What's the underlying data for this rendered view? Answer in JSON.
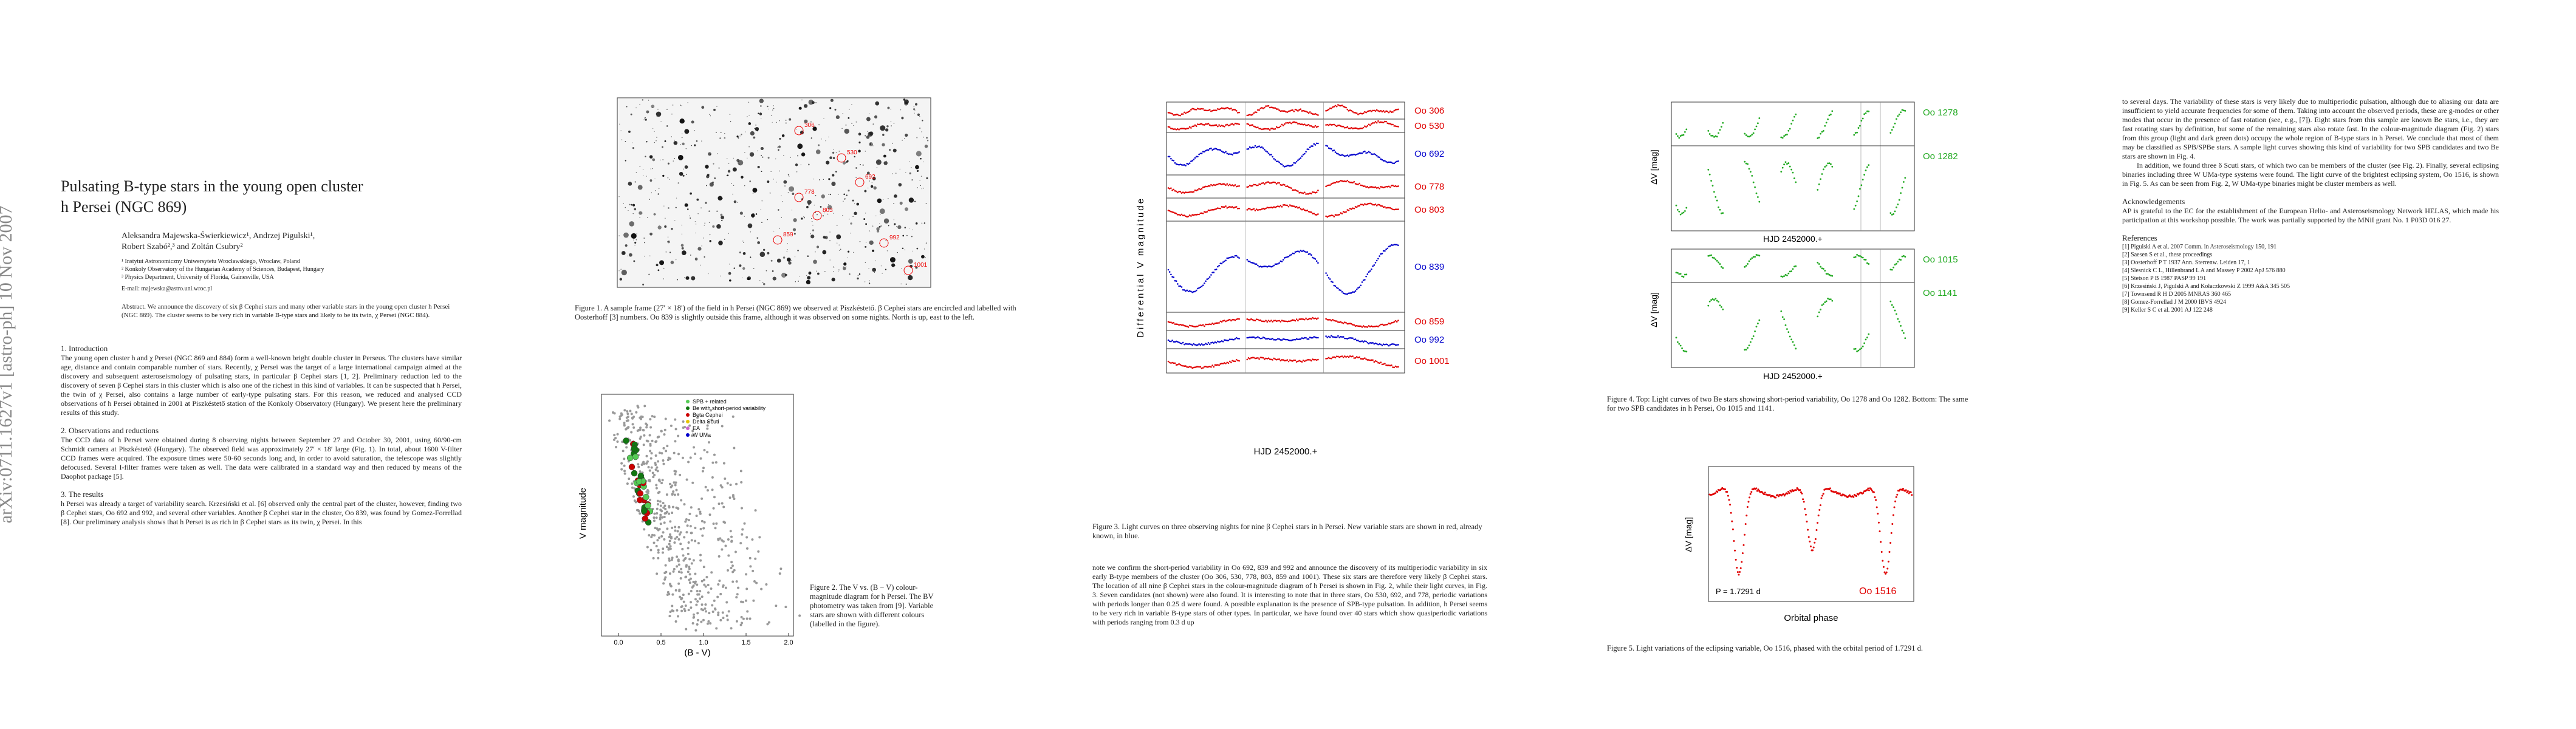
{
  "sidebar": "arXiv:0711.1627v1 [astro-ph] 10 Nov 2007",
  "page1": {
    "title_lines": [
      "Pulsating B-type stars in the young open cluster",
      "h Persei (NGC 869)"
    ],
    "authors": [
      "Aleksandra Majewska-Świerkiewicz¹, Andrzej Pigulski¹,",
      "Robert Szabó²,³ and Zoltán Csubry²"
    ],
    "affiliations": [
      "¹ Instytut Astronomiczny Uniwersytetu Wrocławskiego, Wrocław, Poland",
      "² Konkoly Observatory of the Hungarian Academy of Sciences, Budapest, Hungary",
      "³ Physics Department, University of Florida, Gainesville, USA"
    ],
    "email": "E-mail: majewska@astro.uni.wroc.pl",
    "abstract": "Abstract. We announce the discovery of six β Cephei stars and many other variable stars in the young open cluster h Persei (NGC 869). The cluster seems to be very rich in variable B-type stars and likely to be its twin, χ Persei (NGC 884).",
    "sections": [
      {
        "heading": "1. Introduction",
        "text": "The young open cluster h and χ Persei (NGC 869 and 884) form a well-known bright double cluster in Perseus. The clusters have similar age, distance and contain comparable number of stars. Recently, χ Persei was the target of a large international campaign aimed at the discovery and subsequent asteroseismology of pulsating stars, in particular β Cephei stars [1, 2]. Preliminary reduction led to the discovery of seven β Cephei stars in this cluster which is also one of the richest in this kind of variables. It can be suspected that h Persei, the twin of χ Persei, also contains a large number of early-type pulsating stars. For this reason, we reduced and analysed CCD observations of h Persei obtained in 2001 at Piszkéstető station of the Konkoly Observatory (Hungary). We present here the preliminary results of this study."
      },
      {
        "heading": "2. Observations and reductions",
        "text": "The CCD data of h Persei were obtained during 8 observing nights between September 27 and October 30, 2001, using 60/90-cm Schmidt camera at Piszkéstető (Hungary). The observed field was approximately 27′ × 18′ large (Fig. 1). In total, about 1600 V-filter CCD frames were acquired. The exposure times were 50-60 seconds long and, in order to avoid saturation, the telescope was slightly defocused. Several I-filter frames were taken as well. The data were calibrated in a standard way and then reduced by means of the Daophot package [5]."
      },
      {
        "heading": "3. The results",
        "text": "h Persei was already a target of variability search. Krzesiński et al. [6] observed only the central part of the cluster, however, finding two β Cephei stars, Oo 692 and 992, and several other variables. Another β Cephei star in the cluster, Oo 839, was found by Gomez-Forrellad [8]. Our preliminary analysis shows that h Persei is as rich in β Cephei stars as its twin, χ Persei. In this"
      }
    ]
  },
  "figure1": {
    "caption": "Figure 1. A sample frame (27′ × 18′) of the field in h Persei (NGC 869) we observed at Piszkéstető. β Cephei stars are encircled and labelled with Oosterhoff [3] numbers. Oo 839 is slightly outside this frame, although it was observed on some nights. North is up, east to the left.",
    "labels": [
      "306",
      "530",
      "692",
      "778",
      "803",
      "859",
      "992",
      "1001"
    ]
  },
  "figure2": {
    "legend": [
      "SPB + related",
      "Be with short-period variability",
      "Beta Cephei",
      "Delta Scuti",
      "EA",
      "W UMa"
    ],
    "x_label": "(B - V)",
    "y_label": "V magnitude",
    "xticks": [
      "0.0",
      "0.5",
      "1.0",
      "1.5",
      "2.0"
    ],
    "caption": "Figure 2. The V vs. (B − V) colour-magnitude diagram for h Persei. The BV photometry was taken from [9]. Variable stars are shown with different colours (labelled in the figure)."
  },
  "figure3": {
    "stars": [
      {
        "label": "Oo 306",
        "color": "#e00000"
      },
      {
        "label": "Oo 530",
        "color": "#e00000"
      },
      {
        "label": "Oo 692",
        "color": "#0000cc"
      },
      {
        "label": "Oo 778",
        "color": "#e00000"
      },
      {
        "label": "Oo 803",
        "color": "#e00000"
      },
      {
        "label": "Oo 839",
        "color": "#0000cc"
      },
      {
        "label": "Oo 859",
        "color": "#e00000"
      },
      {
        "label": "Oo 992",
        "color": "#0000cc"
      },
      {
        "label": "Oo 1001",
        "color": "#e00000"
      }
    ],
    "x_label": "HJD 2452000.+",
    "y_label": "Differential V magnitude",
    "caption": "Figure 3. Light curves on three observing nights for nine β Cephei stars in h Persei. New variable stars are shown in red, already known, in blue."
  },
  "page2_text": "note we confirm the short-period variability in Oo 692, 839 and 992 and announce the discovery of its multiperiodic variability in six early B-type members of the cluster (Oo 306, 530, 778, 803, 859 and 1001). These six stars are therefore very likely β Cephei stars. The location of all nine β Cephei stars in the colour-magnitude diagram of h Persei is shown in Fig. 2, while their light curves, in Fig. 3. Seven candidates (not shown) were also found. It is interesting to note that in three stars, Oo 530, 692, and 778, periodic variations with periods longer than 0.25 d were found. A possible explanation is the presence of SPB-type pulsation. In addition, h Persei seems to be very rich in variable B-type stars of other types. In particular, we have found over 40 stars which show quasiperiodic variations with periods ranging from 0.3 d up",
  "figure4": {
    "stars": [
      "Oo 1278",
      "Oo 1282",
      "Oo 1015",
      "Oo 1141"
    ],
    "color": "#22aa22",
    "x_label": "HJD 2452000.+",
    "y_label": "ΔV [mag]",
    "caption": "Figure 4. Top: Light curves of two Be stars showing short-period variability, Oo 1278 and Oo 1282. Bottom: The same for two SPB candidates in h Persei, Oo 1015 and 1141."
  },
  "figure5": {
    "star": "Oo 1516",
    "color": "#e00000",
    "period": "P = 1.7291 d",
    "x_label": "Orbital phase",
    "y_label": "ΔV [mag]",
    "caption": "Figure 5. Light variations of the eclipsing variable, Oo 1516, phased with the orbital period of 1.7291 d."
  },
  "right_column": {
    "paragraphs": [
      "to several days. The variability of these stars is very likely due to multiperiodic pulsation, although due to aliasing our data are insufficient to yield accurate frequencies for some of them. Taking into account the observed periods, these are g-modes or other modes that occur in the presence of fast rotation (see, e.g., [7]). Eight stars from this sample are known Be stars, i.e., they are fast rotating stars by definition, but some of the remaining stars also rotate fast. In the colour-magnitude diagram (Fig. 2) stars from this group (light and dark green dots) occupy the whole region of B-type stars in h Persei. We conclude that most of them may be classified as SPB/SPBe stars. A sample light curves showing this kind of variability for two SPB candidates and two Be stars are shown in Fig. 4.",
      "In addition, we found three δ Scuti stars, of which two can be members of the cluster (see Fig. 2). Finally, several eclipsing binaries including three W UMa-type systems were found. The light curve of the brightest eclipsing system, Oo 1516, is shown in Fig. 5. As can be seen from Fig. 2, W UMa-type binaries might be cluster members as well."
    ],
    "ack_heading": "Acknowledgements",
    "ack": "AP is grateful to the EC for the establishment of the European Helio- and Asteroseismology Network HELAS, which made his participation at this workshop possible. The work was partially supported by the MNiI grant No. 1 P03D 016 27.",
    "ref_heading": "References",
    "refs": [
      "[1] Pigulski A et al. 2007 Comm. in Asteroseismology 150, 191",
      "[2] Saesen S et al., these proceedings",
      "[3] Oosterhoff P T 1937 Ann. Sterrenw. Leiden 17, 1",
      "[4] Slesnick C L, Hillenbrand L A and Massey P 2002 ApJ 576 880",
      "[5] Stetson P B 1987 PASP 99 191",
      "[6] Krzesiński J, Pigulski A and Kołaczkowski Z 1999 A&A 345 505",
      "[7] Townsend R H D 2005 MNRAS 360 465",
      "[8] Gomez-Forrellad J M 2000 IBVS 4924",
      "[9] Keller S C et al. 2001 AJ 122 248"
    ]
  }
}
